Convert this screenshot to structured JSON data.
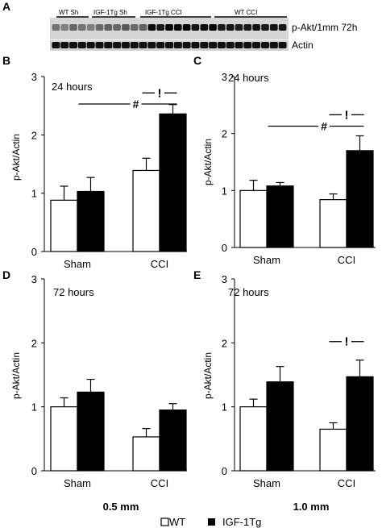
{
  "panel_a": {
    "letter": "A",
    "group_labels": [
      "WT Sh",
      "IGF-1Tg Sh",
      "IGF-1Tg CCI",
      "WT CCI"
    ],
    "row_labels": [
      "p-Akt/1mm 72h",
      "Actin"
    ]
  },
  "legend": {
    "wt": "WT",
    "igf": "IGF-1Tg"
  },
  "column_labels": {
    "left": "0.5 mm",
    "right": "1.0 mm"
  },
  "sig_symbols": {
    "hash": "#",
    "bang": "!"
  },
  "chart_data": [
    {
      "id": "B",
      "type": "bar",
      "panel_label": "B",
      "annotation": "24 hours",
      "categories": [
        "Sham",
        "CCI"
      ],
      "ylabel": "p-Akt/Actin",
      "ylim": [
        0,
        3
      ],
      "yticks": [
        0,
        1,
        2,
        3
      ],
      "series": [
        {
          "name": "WT",
          "values": [
            0.88,
            1.39
          ],
          "errors": [
            0.24,
            0.21
          ]
        },
        {
          "name": "IGF-1Tg",
          "values": [
            1.03,
            2.36
          ],
          "errors": [
            0.24,
            0.16
          ]
        }
      ],
      "significance": [
        {
          "symbol": "!",
          "y": 2.72,
          "between": "CCI WT vs CCI IGF-1Tg"
        },
        {
          "symbol": "#",
          "y": 2.53,
          "between": "Sham IGF-1Tg vs CCI IGF-1Tg"
        }
      ]
    },
    {
      "id": "C",
      "type": "bar",
      "panel_label": "C",
      "annotation": "24 hours",
      "categories": [
        "Sham",
        "CCI"
      ],
      "ylabel": "p-Akt/Actin",
      "ylim": [
        0,
        3
      ],
      "yticks": [
        0,
        1,
        2,
        3
      ],
      "series": [
        {
          "name": "WT",
          "values": [
            1.0,
            0.84
          ],
          "errors": [
            0.18,
            0.1
          ]
        },
        {
          "name": "IGF-1Tg",
          "values": [
            1.08,
            1.7
          ],
          "errors": [
            0.06,
            0.26
          ]
        }
      ],
      "significance": [
        {
          "symbol": "!",
          "y": 2.33,
          "between": "CCI WT vs CCI IGF-1Tg"
        },
        {
          "symbol": "#",
          "y": 2.13,
          "between": "Sham IGF-1Tg vs CCI IGF-1Tg"
        }
      ]
    },
    {
      "id": "D",
      "type": "bar",
      "panel_label": "D",
      "annotation": "72 hours",
      "categories": [
        "Sham",
        "CCI"
      ],
      "ylabel": "p-Akt/Actin",
      "ylim": [
        0,
        3
      ],
      "yticks": [
        0,
        1,
        2,
        3
      ],
      "series": [
        {
          "name": "WT",
          "values": [
            1.0,
            0.53
          ],
          "errors": [
            0.14,
            0.13
          ]
        },
        {
          "name": "IGF-1Tg",
          "values": [
            1.23,
            0.95
          ],
          "errors": [
            0.2,
            0.1
          ]
        }
      ],
      "significance": []
    },
    {
      "id": "E",
      "type": "bar",
      "panel_label": "E",
      "annotation": "72 hours",
      "categories": [
        "Sham",
        "CCI"
      ],
      "ylabel": "p-Akt/Actin",
      "ylim": [
        0,
        3
      ],
      "yticks": [
        0,
        1,
        2,
        3
      ],
      "series": [
        {
          "name": "WT",
          "values": [
            1.0,
            0.65
          ],
          "errors": [
            0.12,
            0.1
          ]
        },
        {
          "name": "IGF-1Tg",
          "values": [
            1.39,
            1.47
          ],
          "errors": [
            0.24,
            0.26
          ]
        }
      ],
      "significance": [
        {
          "symbol": "!",
          "y": 2.02,
          "between": "CCI WT vs CCI IGF-1Tg"
        }
      ]
    }
  ]
}
